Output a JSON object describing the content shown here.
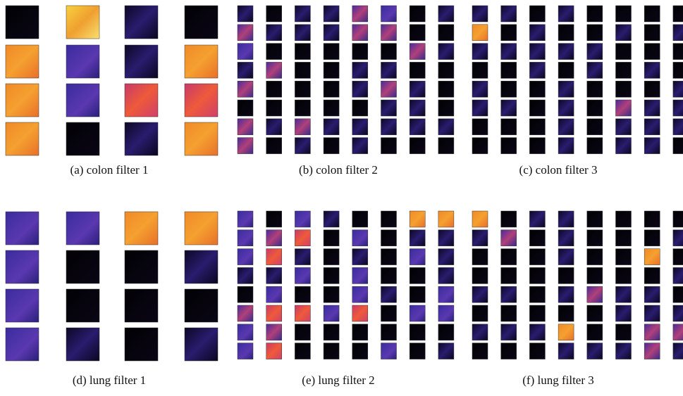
{
  "panels": [
    {
      "caption": "(a) colon filter 1"
    },
    {
      "caption": "(b) colon filter 2"
    },
    {
      "caption": "(c) colon filter 3"
    },
    {
      "caption": "(d) lung filter 1"
    },
    {
      "caption": "(e) lung filter 2"
    },
    {
      "caption": "(f) lung filter 3"
    }
  ]
}
